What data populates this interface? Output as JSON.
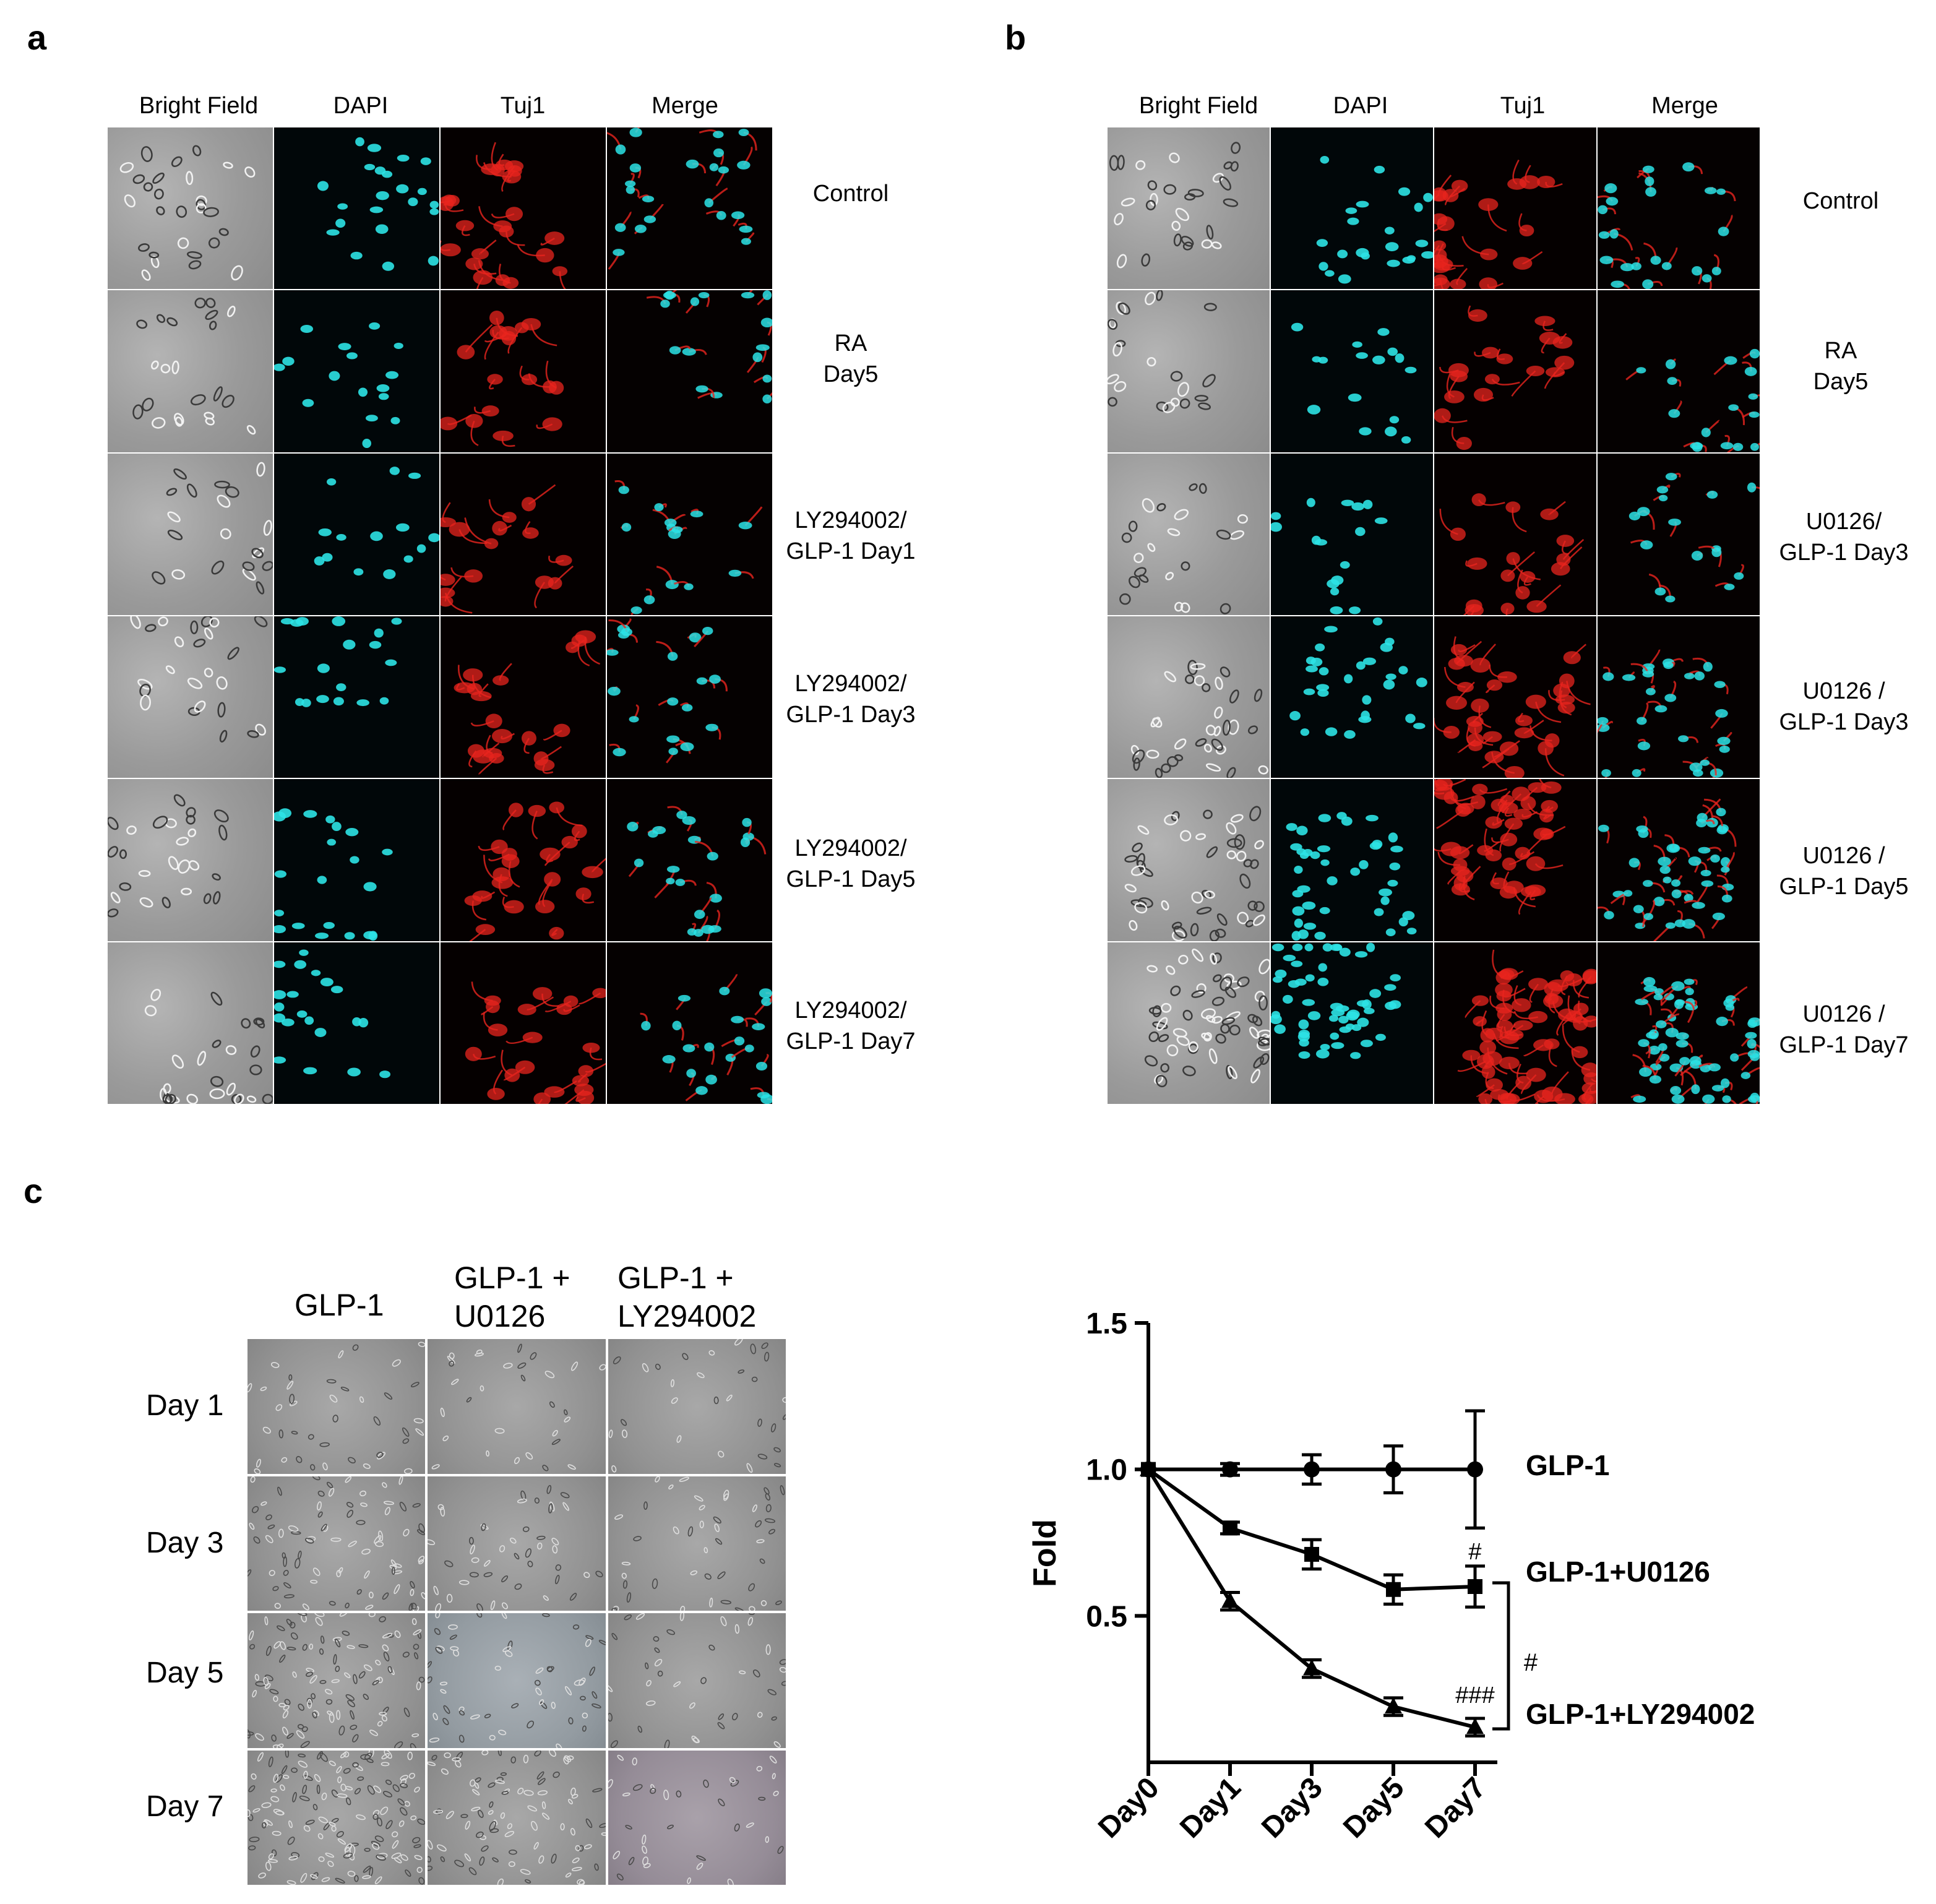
{
  "panels": {
    "a": {
      "letter": "a",
      "columns": [
        "Bright Field",
        "DAPI",
        "Tuj1",
        "Merge"
      ],
      "rows": [
        "Control",
        "RA\nDay5",
        "LY294002/\nGLP-1 Day1",
        "LY294002/\nGLP-1 Day3",
        "LY294002/\nGLP-1 Day5",
        "LY294002/\nGLP-1 Day7"
      ]
    },
    "b": {
      "letter": "b",
      "columns": [
        "Bright Field",
        "DAPI",
        "Tuj1",
        "Merge"
      ],
      "rows": [
        "Control",
        "RA\nDay5",
        "U0126/\nGLP-1 Day3",
        "U0126 /\nGLP-1 Day3",
        "U0126 /\nGLP-1 Day5",
        "U0126 /\nGLP-1 Day7"
      ]
    },
    "c": {
      "letter": "c",
      "columns": [
        "GLP-1",
        "GLP-1 +\nU0126",
        "GLP-1 +\nLY294002"
      ],
      "rows": [
        "Day 1",
        "Day 3",
        "Day 5",
        "Day 7"
      ]
    }
  },
  "colors": {
    "dapi": "#2ce3e6",
    "tuj1": "#e8241e",
    "brightfield": "#9a9a9a"
  },
  "chart_data": {
    "type": "line",
    "ylabel": "Fold",
    "xlabel": "",
    "categories": [
      "Day0",
      "Day1",
      "Day3",
      "Day5",
      "Day7"
    ],
    "yticks": [
      "1.5",
      "1.0",
      "0.5"
    ],
    "ylim": [
      0,
      1.5
    ],
    "grid": false,
    "legend_position": "right, labels at line ends",
    "series": [
      {
        "name": "GLP-1",
        "marker": "circle",
        "values": [
          1.0,
          1.0,
          1.0,
          1.0,
          1.0
        ],
        "errors": [
          0.0,
          0.02,
          0.05,
          0.08,
          0.2
        ]
      },
      {
        "name": "GLP-1+U0126",
        "marker": "square",
        "values": [
          1.0,
          0.8,
          0.71,
          0.59,
          0.6
        ],
        "errors": [
          0.0,
          0.02,
          0.05,
          0.05,
          0.07
        ]
      },
      {
        "name": "GLP-1+LY294002",
        "marker": "triangle",
        "values": [
          1.0,
          0.55,
          0.32,
          0.19,
          0.12
        ],
        "errors": [
          0.0,
          0.03,
          0.03,
          0.03,
          0.03
        ]
      }
    ],
    "annotations": [
      {
        "text": "#",
        "near": "GLP-1+U0126 Day7"
      },
      {
        "text": "###",
        "near": "GLP-1+LY294002 Day7"
      },
      {
        "text": "#",
        "near": "bracket between GLP-1+U0126 and GLP-1+LY294002"
      }
    ]
  }
}
